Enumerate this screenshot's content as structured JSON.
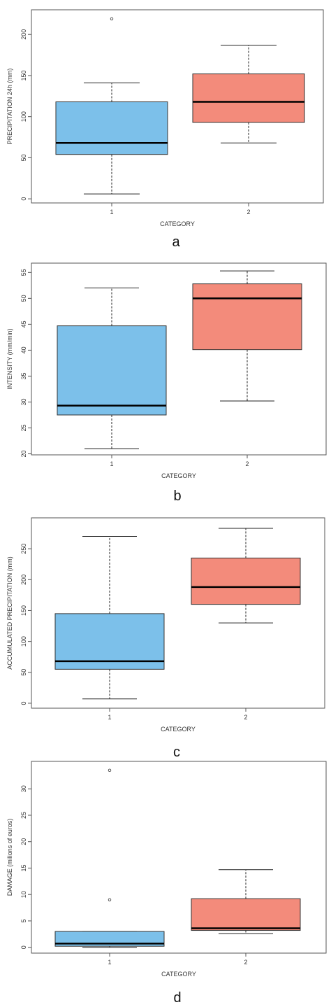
{
  "colors": {
    "category1": "#7cc0ea",
    "category2": "#f38b7b",
    "frame": "#555555"
  },
  "chart_data": [
    {
      "type": "boxplot",
      "panel_label": "a",
      "xlabel": "CATEGORY",
      "ylabel": "PRECIPITATION 24h (mm)",
      "categories": [
        "1",
        "2"
      ],
      "ylim": [
        -5,
        230
      ],
      "yticks": [
        0,
        50,
        100,
        150,
        200
      ],
      "boxes": [
        {
          "category": "1",
          "min": 6,
          "q1": 54,
          "median": 68,
          "q3": 118,
          "max": 141,
          "outliers": [
            219
          ]
        },
        {
          "category": "2",
          "min": 68,
          "q1": 93,
          "median": 118,
          "q3": 152,
          "max": 187,
          "outliers": []
        }
      ]
    },
    {
      "type": "boxplot",
      "panel_label": "b",
      "xlabel": "CATEGORY",
      "ylabel": "INTENSITY (mm/min)",
      "categories": [
        "1",
        "2"
      ],
      "ylim": [
        19.8,
        56.8
      ],
      "yticks": [
        20,
        25,
        30,
        35,
        40,
        45,
        50,
        55
      ],
      "boxes": [
        {
          "category": "1",
          "min": 21,
          "q1": 27.5,
          "median": 29.3,
          "q3": 44.7,
          "max": 52,
          "outliers": []
        },
        {
          "category": "2",
          "min": 30.2,
          "q1": 40.1,
          "median": 50,
          "q3": 52.8,
          "max": 55.3,
          "outliers": []
        }
      ]
    },
    {
      "type": "boxplot",
      "panel_label": "c",
      "xlabel": "CATEGORY",
      "ylabel": "ACCUMULATED PRECIPITATION (mm)",
      "categories": [
        "1",
        "2"
      ],
      "ylim": [
        -8,
        300
      ],
      "yticks": [
        0,
        50,
        100,
        150,
        200,
        250
      ],
      "boxes": [
        {
          "category": "1",
          "min": 7,
          "q1": 55,
          "median": 68,
          "q3": 145,
          "max": 270,
          "outliers": []
        },
        {
          "category": "2",
          "min": 130,
          "q1": 160,
          "median": 188,
          "q3": 235,
          "max": 283,
          "outliers": []
        }
      ]
    },
    {
      "type": "boxplot",
      "panel_label": "d",
      "xlabel": "CATEGORY",
      "ylabel": "DAMAGE (milions of euros)",
      "categories": [
        "1",
        "2"
      ],
      "ylim": [
        -1.1,
        35.2
      ],
      "yticks": [
        0,
        5,
        10,
        15,
        20,
        25,
        30
      ],
      "boxes": [
        {
          "category": "1",
          "min": 0,
          "q1": 0.2,
          "median": 0.7,
          "q3": 3,
          "max": 3,
          "outliers": [
            9,
            33.5
          ]
        },
        {
          "category": "2",
          "min": 2.6,
          "q1": 3.2,
          "median": 3.6,
          "q3": 9.2,
          "max": 14.7,
          "outliers": []
        }
      ]
    }
  ]
}
